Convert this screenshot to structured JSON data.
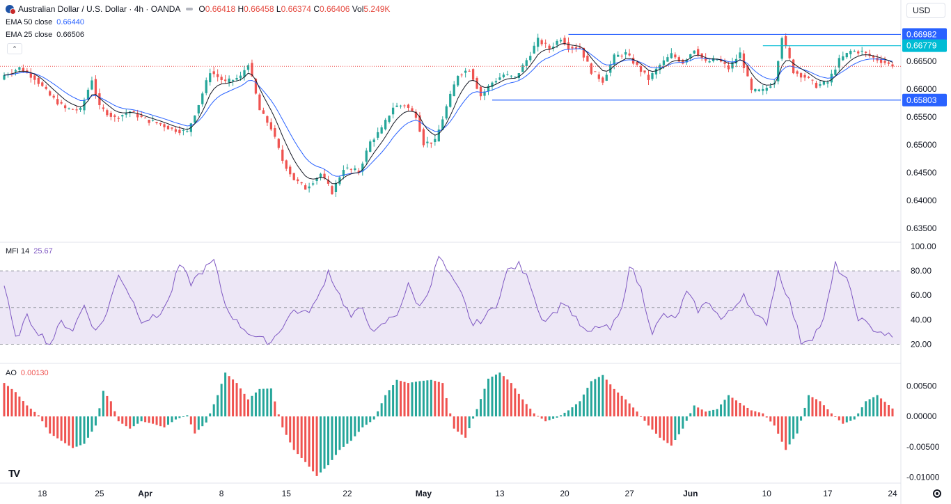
{
  "header": {
    "title": "Australian Dollar / U.S. Dollar · 4h · OANDA",
    "open_label": "O",
    "open": "0.66418",
    "high_label": "H",
    "high": "0.66458",
    "low_label": "L",
    "low": "0.66374",
    "close_label": "C",
    "close": "0.66406",
    "vol_label": "Vol",
    "vol": "5.249K"
  },
  "indicators": {
    "ema50_label": "EMA 50 close",
    "ema50_value": "0.66440",
    "ema25_label": "EMA 25 close",
    "ema25_value": "0.66506",
    "mfi_label": "MFI 14",
    "mfi_value": "25.67",
    "ao_label": "AO",
    "ao_value": "0.00130"
  },
  "currency_button": "USD",
  "collapse_icon": "chevron-up-icon",
  "logo": "TV",
  "colors": {
    "up": "#26a69a",
    "down": "#ef5350",
    "level": "#2962ff",
    "level_teal": "#00bcd4",
    "ema50": "#2962ff",
    "ema25": "#131722",
    "mfi": "#7e57c2",
    "mfi_band": "#ede7f6"
  },
  "chart_data": [
    {
      "type": "candlestick",
      "title": "Australian Dollar / U.S. Dollar · 4h · OANDA",
      "ylim": [
        0.633,
        0.6715
      ],
      "y_ticks": [
        "0.63500",
        "0.64000",
        "0.64500",
        "0.65000",
        "0.65500",
        "0.66000",
        "0.66500"
      ],
      "x_ticks": [
        "18",
        "25",
        "Apr",
        "8",
        "15",
        "22",
        "May",
        "13",
        "20",
        "27",
        "Jun",
        "10",
        "17",
        "24"
      ],
      "x_tick_index": [
        10,
        25,
        37,
        57,
        74,
        90,
        110,
        130,
        147,
        164,
        180,
        200,
        216,
        233
      ],
      "levels": [
        {
          "value": 0.66982,
          "label": "0.66982",
          "color": "#2962ff",
          "from_index": 148
        },
        {
          "value": 0.66779,
          "label": "0.66779",
          "color": "#00bcd4",
          "from_index": 199
        },
        {
          "value": 0.65803,
          "label": "0.65803",
          "color": "#2962ff",
          "from_index": 128
        }
      ],
      "dotted_last_price": 0.6641,
      "series": [
        {
          "name": "EMA 50 close",
          "last": 0.6644
        },
        {
          "name": "EMA 25 close",
          "last": 0.66506
        }
      ],
      "anchors": [
        [
          0,
          0.6625
        ],
        [
          4,
          0.6638
        ],
        [
          8,
          0.662
        ],
        [
          12,
          0.6588
        ],
        [
          16,
          0.6565
        ],
        [
          20,
          0.6562
        ],
        [
          23,
          0.6618
        ],
        [
          25,
          0.6567
        ],
        [
          29,
          0.6548
        ],
        [
          33,
          0.656
        ],
        [
          37,
          0.6545
        ],
        [
          41,
          0.6537
        ],
        [
          44,
          0.6528
        ],
        [
          48,
          0.6523
        ],
        [
          51,
          0.6573
        ],
        [
          54,
          0.6632
        ],
        [
          58,
          0.6612
        ],
        [
          62,
          0.6622
        ],
        [
          64,
          0.6647
        ],
        [
          67,
          0.6562
        ],
        [
          70,
          0.653
        ],
        [
          73,
          0.6472
        ],
        [
          76,
          0.6438
        ],
        [
          79,
          0.6422
        ],
        [
          83,
          0.6448
        ],
        [
          86,
          0.6415
        ],
        [
          89,
          0.6458
        ],
        [
          93,
          0.6452
        ],
        [
          96,
          0.6505
        ],
        [
          99,
          0.6528
        ],
        [
          102,
          0.6568
        ],
        [
          105,
          0.6572
        ],
        [
          108,
          0.6553
        ],
        [
          110,
          0.6503
        ],
        [
          113,
          0.6506
        ],
        [
          116,
          0.6568
        ],
        [
          119,
          0.6626
        ],
        [
          122,
          0.6636
        ],
        [
          125,
          0.6588
        ],
        [
          128,
          0.6612
        ],
        [
          131,
          0.6626
        ],
        [
          134,
          0.662
        ],
        [
          137,
          0.6652
        ],
        [
          140,
          0.6688
        ],
        [
          143,
          0.6673
        ],
        [
          146,
          0.6692
        ],
        [
          148,
          0.6676
        ],
        [
          151,
          0.6674
        ],
        [
          154,
          0.6632
        ],
        [
          157,
          0.6615
        ],
        [
          160,
          0.6658
        ],
        [
          163,
          0.6664
        ],
        [
          166,
          0.6641
        ],
        [
          169,
          0.6618
        ],
        [
          172,
          0.6643
        ],
        [
          175,
          0.6662
        ],
        [
          178,
          0.6648
        ],
        [
          181,
          0.6672
        ],
        [
          184,
          0.6648
        ],
        [
          187,
          0.6654
        ],
        [
          190,
          0.6637
        ],
        [
          193,
          0.6664
        ],
        [
          196,
          0.6596
        ],
        [
          199,
          0.6597
        ],
        [
          202,
          0.6614
        ],
        [
          204,
          0.6695
        ],
        [
          207,
          0.6632
        ],
        [
          210,
          0.6622
        ],
        [
          213,
          0.6606
        ],
        [
          216,
          0.6612
        ],
        [
          219,
          0.6652
        ],
        [
          222,
          0.6668
        ],
        [
          225,
          0.6667
        ],
        [
          228,
          0.6656
        ],
        [
          231,
          0.6648
        ],
        [
          233,
          0.66406
        ]
      ],
      "candle_count": 234
    },
    {
      "type": "line",
      "title": "MFI 14",
      "ylim": [
        10,
        100
      ],
      "y_ticks": [
        "100.00",
        "80.00",
        "60.00",
        "40.00",
        "20.00"
      ],
      "bands": [
        20,
        50,
        80
      ],
      "anchors": [
        [
          0,
          68
        ],
        [
          3,
          24
        ],
        [
          6,
          42
        ],
        [
          9,
          30
        ],
        [
          12,
          20
        ],
        [
          15,
          38
        ],
        [
          18,
          32
        ],
        [
          21,
          52
        ],
        [
          24,
          30
        ],
        [
          27,
          46
        ],
        [
          30,
          78
        ],
        [
          33,
          60
        ],
        [
          36,
          40
        ],
        [
          40,
          42
        ],
        [
          43,
          55
        ],
        [
          46,
          85
        ],
        [
          49,
          70
        ],
        [
          52,
          80
        ],
        [
          55,
          88
        ],
        [
          58,
          52
        ],
        [
          61,
          38
        ],
        [
          64,
          30
        ],
        [
          67,
          24
        ],
        [
          70,
          22
        ],
        [
          73,
          35
        ],
        [
          76,
          48
        ],
        [
          79,
          45
        ],
        [
          82,
          55
        ],
        [
          85,
          80
        ],
        [
          88,
          60
        ],
        [
          91,
          42
        ],
        [
          94,
          50
        ],
        [
          97,
          28
        ],
        [
          100,
          38
        ],
        [
          103,
          45
        ],
        [
          106,
          68
        ],
        [
          109,
          50
        ],
        [
          112,
          70
        ],
        [
          114,
          92
        ],
        [
          117,
          75
        ],
        [
          120,
          60
        ],
        [
          123,
          35
        ],
        [
          126,
          42
        ],
        [
          129,
          52
        ],
        [
          132,
          80
        ],
        [
          135,
          85
        ],
        [
          138,
          70
        ],
        [
          141,
          40
        ],
        [
          144,
          45
        ],
        [
          147,
          55
        ],
        [
          150,
          40
        ],
        [
          153,
          28
        ],
        [
          156,
          35
        ],
        [
          159,
          32
        ],
        [
          162,
          48
        ],
        [
          164,
          86
        ],
        [
          167,
          65
        ],
        [
          170,
          30
        ],
        [
          173,
          44
        ],
        [
          176,
          40
        ],
        [
          179,
          62
        ],
        [
          182,
          48
        ],
        [
          185,
          55
        ],
        [
          188,
          40
        ],
        [
          191,
          48
        ],
        [
          194,
          62
        ],
        [
          197,
          42
        ],
        [
          200,
          38
        ],
        [
          203,
          80
        ],
        [
          206,
          55
        ],
        [
          209,
          22
        ],
        [
          212,
          26
        ],
        [
          215,
          40
        ],
        [
          218,
          85
        ],
        [
          221,
          72
        ],
        [
          224,
          42
        ],
        [
          227,
          34
        ],
        [
          230,
          30
        ],
        [
          233,
          25.67
        ]
      ]
    },
    {
      "type": "bar",
      "title": "AO",
      "ylim": [
        -0.0105,
        0.0078
      ],
      "y_ticks": [
        "0.00500",
        "0.00000",
        "-0.00500",
        "-0.01000"
      ],
      "anchors": [
        [
          0,
          0.0055
        ],
        [
          3,
          0.004
        ],
        [
          6,
          0.0018
        ],
        [
          9,
          0.0002
        ],
        [
          12,
          -0.0028
        ],
        [
          15,
          -0.004
        ],
        [
          18,
          -0.0052
        ],
        [
          21,
          -0.0045
        ],
        [
          24,
          -0.0015
        ],
        [
          26,
          0.0042
        ],
        [
          28,
          0.0025
        ],
        [
          30,
          -0.0008
        ],
        [
          33,
          -0.002
        ],
        [
          36,
          -0.0008
        ],
        [
          39,
          -0.0012
        ],
        [
          42,
          -0.0018
        ],
        [
          45,
          -0.0005
        ],
        [
          48,
          0.0002
        ],
        [
          50,
          -0.0028
        ],
        [
          53,
          -0.001
        ],
        [
          56,
          0.0035
        ],
        [
          58,
          0.0072
        ],
        [
          61,
          0.0055
        ],
        [
          64,
          0.0028
        ],
        [
          67,
          0.0045
        ],
        [
          70,
          0.0046
        ],
        [
          73,
          -0.0018
        ],
        [
          76,
          -0.0055
        ],
        [
          79,
          -0.0075
        ],
        [
          82,
          -0.0098
        ],
        [
          85,
          -0.008
        ],
        [
          88,
          -0.0055
        ],
        [
          91,
          -0.004
        ],
        [
          94,
          -0.0018
        ],
        [
          97,
          -0.0005
        ],
        [
          100,
          0.0035
        ],
        [
          103,
          0.006
        ],
        [
          106,
          0.0055
        ],
        [
          109,
          0.0058
        ],
        [
          112,
          0.006
        ],
        [
          115,
          0.0055
        ],
        [
          118,
          -0.002
        ],
        [
          121,
          -0.0035
        ],
        [
          124,
          0.0012
        ],
        [
          127,
          0.0062
        ],
        [
          130,
          0.0072
        ],
        [
          133,
          0.0055
        ],
        [
          136,
          0.0028
        ],
        [
          139,
          0.0005
        ],
        [
          142,
          -0.0008
        ],
        [
          145,
          -0.0002
        ],
        [
          148,
          0.001
        ],
        [
          151,
          0.0025
        ],
        [
          154,
          0.0058
        ],
        [
          157,
          0.0068
        ],
        [
          160,
          0.0045
        ],
        [
          163,
          0.0028
        ],
        [
          166,
          0.0008
        ],
        [
          169,
          -0.0015
        ],
        [
          172,
          -0.0035
        ],
        [
          175,
          -0.0048
        ],
        [
          178,
          -0.002
        ],
        [
          181,
          0.0018
        ],
        [
          184,
          0.0008
        ],
        [
          187,
          0.0012
        ],
        [
          190,
          0.0035
        ],
        [
          193,
          0.0022
        ],
        [
          196,
          0.001
        ],
        [
          199,
          0.0005
        ],
        [
          202,
          -0.0015
        ],
        [
          205,
          -0.0055
        ],
        [
          208,
          -0.0028
        ],
        [
          211,
          0.0035
        ],
        [
          214,
          0.0025
        ],
        [
          217,
          0.0005
        ],
        [
          220,
          -0.0012
        ],
        [
          223,
          -0.0005
        ],
        [
          226,
          0.0025
        ],
        [
          229,
          0.0035
        ],
        [
          233,
          0.0013
        ]
      ]
    }
  ]
}
